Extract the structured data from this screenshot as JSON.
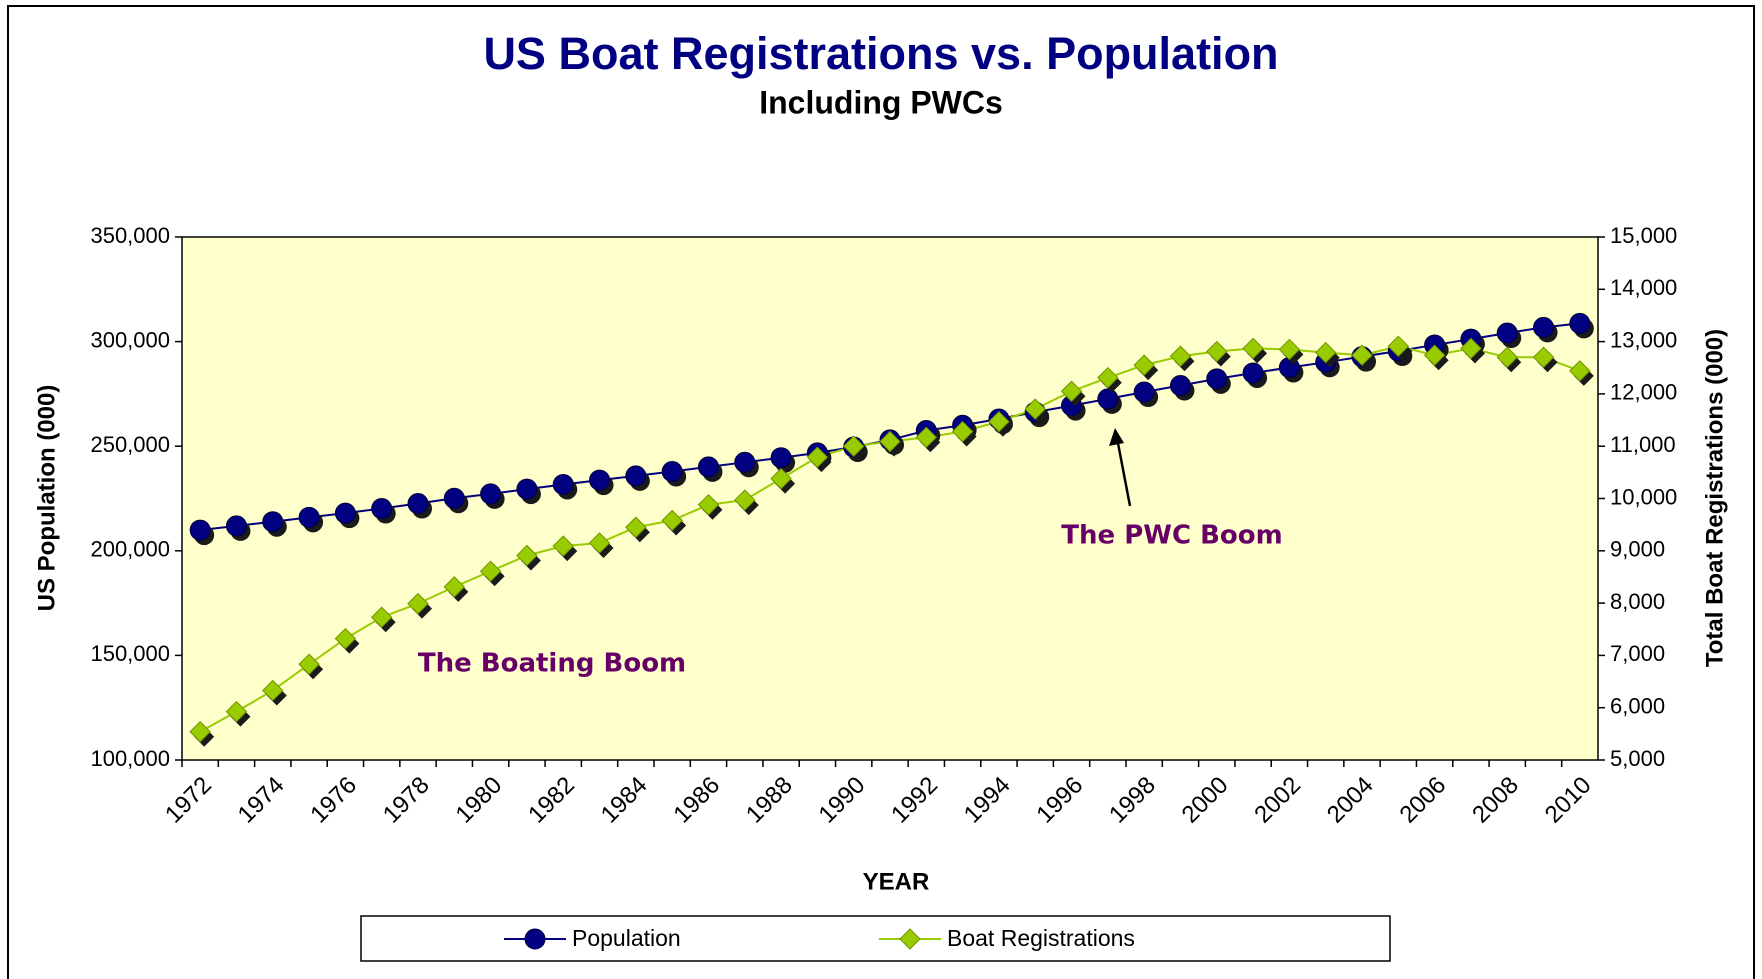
{
  "chart_data": {
    "type": "line",
    "title": "US Boat Registrations vs. Population",
    "subtitle": "Including PWCs",
    "x_label": "YEAR",
    "y_label": "US Population (000)",
    "y2_label": "Total Boat Registrations (000)",
    "categories": [
      "1972",
      null,
      "1974",
      null,
      "1976",
      null,
      "1978",
      null,
      "1980",
      null,
      "1982",
      null,
      "1984",
      null,
      "1986",
      null,
      "1988",
      null,
      "1990",
      null,
      "1992",
      null,
      "1994",
      null,
      "1996",
      null,
      "1998",
      null,
      "2000",
      null,
      "2002",
      null,
      "2004",
      null,
      "2006",
      null,
      "2008",
      null,
      "2010"
    ],
    "series": [
      {
        "name": "Population",
        "color": "#000080",
        "marker": "circle",
        "values": [
          209900,
          211900,
          213900,
          216000,
          218000,
          220200,
          222600,
          225100,
          227200,
          229500,
          231700,
          233800,
          235800,
          237900,
          240100,
          242300,
          244500,
          246800,
          249600,
          253000,
          257500,
          260000,
          263000,
          266300,
          269400,
          272600,
          275900,
          279000,
          282200,
          285000,
          287600,
          290100,
          292800,
          295500,
          298400,
          301200,
          304100,
          306800,
          308700
        ]
      },
      {
        "name": "Boat Registrations",
        "color": "#99cc00",
        "marker": "diamond",
        "axis": "y2",
        "values": [
          5540,
          5925,
          6330,
          6830,
          7320,
          7730,
          7990,
          8310,
          8610,
          8910,
          9090,
          9150,
          9450,
          9580,
          9880,
          9970,
          10380,
          10790,
          11000,
          11090,
          11170,
          11280,
          11470,
          11710,
          12050,
          12310,
          12550,
          12720,
          12810,
          12870,
          12850,
          12790,
          12740,
          12910,
          12740,
          12870,
          12700,
          12700,
          12440
        ]
      }
    ],
    "ylim": [
      100000,
      350000
    ],
    "yticks": [
      {
        "value": 100000,
        "label": "100,000"
      },
      {
        "value": 150000,
        "label": "150,000"
      },
      {
        "value": 200000,
        "label": "200,000"
      },
      {
        "value": 250000,
        "label": "250,000"
      },
      {
        "value": 300000,
        "label": "300,000"
      },
      {
        "value": 350000,
        "label": "350,000"
      }
    ],
    "y2lim": [
      5000,
      15000
    ],
    "y2ticks": [
      {
        "value": 5000,
        "label": "5,000"
      },
      {
        "value": 6000,
        "label": "6,000"
      },
      {
        "value": 7000,
        "label": "7,000"
      },
      {
        "value": 8000,
        "label": "8,000"
      },
      {
        "value": 9000,
        "label": "9,000"
      },
      {
        "value": 10000,
        "label": "10,000"
      },
      {
        "value": 11000,
        "label": "11,000"
      },
      {
        "value": 12000,
        "label": "12,000"
      },
      {
        "value": 13000,
        "label": "13,000"
      },
      {
        "value": 14000,
        "label": "14,000"
      },
      {
        "value": 15000,
        "label": "15,000"
      }
    ],
    "annotations": [
      {
        "text": "The Boating Boom"
      },
      {
        "text": "The PWC Boom"
      }
    ],
    "legend": "bottom",
    "plot_background": "#ffffcc"
  }
}
